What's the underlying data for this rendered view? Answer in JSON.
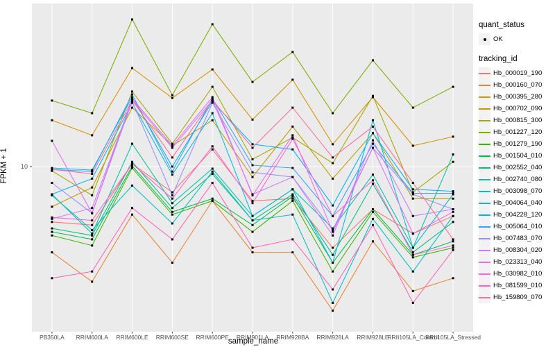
{
  "chart_data": {
    "type": "line",
    "xlabel": "sample_name",
    "ylabel": "FPKM + 1",
    "y_scale": "log10",
    "y_tick_labels": [
      "10"
    ],
    "grid": true,
    "panel_color": "#EBEBEB",
    "grid_color": "#FFFFFF",
    "categories": [
      "PB350LA",
      "RRIM600LA",
      "RRIM600LE",
      "RRIM600SE",
      "RRIM600PE",
      "RRIM901LA",
      "RRIM928BA",
      "RRIM928LA",
      "RRIM928LE",
      "RRII105LA_Control",
      "RRII105LA_Stressed"
    ],
    "legend": {
      "quant_status_title": "quant_status",
      "quant_status_items": [
        "OK"
      ],
      "tracking_id_title": "tracking_id",
      "position": "right"
    },
    "series": [
      {
        "name": "Hb_000019_190",
        "color": "#F8766D",
        "values": [
          4.5,
          4.3,
          10.4,
          6.9,
          12.8,
          6.1,
          6.3,
          3.1,
          5.4,
          3.8,
          4.9
        ]
      },
      {
        "name": "Hb_000160_070",
        "color": "#EA8331",
        "values": [
          2.9,
          1.9,
          5.0,
          2.5,
          6.1,
          2.9,
          2.9,
          1.25,
          3.4,
          1.66,
          2.0
        ]
      },
      {
        "name": "Hb_000395_280",
        "color": "#D89000",
        "values": [
          19.5,
          15.7,
          41.4,
          26.9,
          40.6,
          19.7,
          35.0,
          13.8,
          27.2,
          13.5,
          15.4
        ]
      },
      {
        "name": "Hb_000702_090",
        "color": "#C09B00",
        "values": [
          5.6,
          7.4,
          23.4,
          13.5,
          19.5,
          8.6,
          17.8,
          8.4,
          16.2,
          6.3,
          6.3
        ]
      },
      {
        "name": "Hb_000815_300",
        "color": "#A3A500",
        "values": [
          9.4,
          6.6,
          29.5,
          13.9,
          31.6,
          11.1,
          15.2,
          10.5,
          27.7,
          6.9,
          10.7
        ]
      },
      {
        "name": "Hb_001227_120",
        "color": "#7CAE00",
        "values": [
          25.9,
          21.6,
          83.5,
          28.0,
          77.9,
          33.9,
          52.2,
          21.6,
          46.3,
          23.4,
          31.6
        ]
      },
      {
        "name": "Hb_001279_190",
        "color": "#39B600",
        "values": [
          3.7,
          3.2,
          9.8,
          5.0,
          6.1,
          3.9,
          6.1,
          2.2,
          5.2,
          2.7,
          3.1
        ]
      },
      {
        "name": "Hb_001504_010",
        "color": "#00BB4E",
        "values": [
          3.9,
          3.5,
          10.1,
          5.2,
          6.3,
          4.3,
          6.5,
          2.5,
          5.4,
          2.8,
          3.4
        ]
      },
      {
        "name": "Hb_002552_040",
        "color": "#00BF7D",
        "values": [
          4.1,
          3.7,
          10.7,
          5.5,
          9.0,
          4.6,
          6.7,
          2.8,
          7.8,
          2.9,
          4.5
        ]
      },
      {
        "name": "Hb_002740_080",
        "color": "#00C1A3",
        "values": [
          6.7,
          3.8,
          13.9,
          5.9,
          9.7,
          4.9,
          7.2,
          4.1,
          8.9,
          3.1,
          11.9
        ]
      },
      {
        "name": "Hb_003098_070",
        "color": "#00BFC4",
        "values": [
          6.6,
          4.0,
          7.6,
          4.4,
          9.3,
          4.6,
          5.0,
          1.4,
          4.7,
          2.2,
          4.9
        ]
      },
      {
        "name": "Hb_004064_040",
        "color": "#00BAE0",
        "values": [
          6.7,
          8.4,
          25.1,
          8.9,
          21.6,
          4.9,
          7.2,
          2.5,
          19.5,
          3.1,
          6.7
        ]
      },
      {
        "name": "Hb_004228_120",
        "color": "#00B0F6",
        "values": [
          9.8,
          9.5,
          27.2,
          10.0,
          25.6,
          13.8,
          12.8,
          5.7,
          16.2,
          7.2,
          7.0
        ]
      },
      {
        "name": "Hb_005064_010",
        "color": "#35A2FF",
        "values": [
          9.6,
          9.3,
          28.3,
          9.3,
          26.7,
          10.2,
          9.8,
          4.9,
          13.9,
          6.8,
          6.8
        ]
      },
      {
        "name": "Hb_007483_070",
        "color": "#9590FF",
        "values": [
          7.9,
          5.1,
          25.6,
          6.6,
          25.1,
          9.2,
          8.6,
          4.0,
          13.1,
          6.7,
          5.4
        ]
      },
      {
        "name": "Hb_008304_020",
        "color": "#C77CFF",
        "values": [
          4.7,
          5.5,
          26.1,
          13.1,
          26.1,
          6.7,
          8.6,
          3.7,
          14.6,
          4.9,
          5.4
        ]
      },
      {
        "name": "Hb_023313_040",
        "color": "#E76BF3",
        "values": [
          14.5,
          5.1,
          26.7,
          13.5,
          27.2,
          6.6,
          15.7,
          3.9,
          13.1,
          3.8,
          5.2
        ]
      },
      {
        "name": "Hb_030982_010",
        "color": "#FA62DB",
        "values": [
          4.8,
          4.6,
          10.4,
          6.3,
          13.4,
          5.9,
          14.9,
          4.9,
          8.2,
          2.8,
          3.2
        ]
      },
      {
        "name": "Hb_081599_010",
        "color": "#FF62BC",
        "values": [
          2.0,
          2.2,
          5.5,
          3.5,
          7.9,
          3.1,
          3.5,
          1.7,
          4.3,
          1.4,
          3.0
        ]
      },
      {
        "name": "Hb_159809_070",
        "color": "#FF6A98",
        "values": [
          9.6,
          9.0,
          26.1,
          11.4,
          26.1,
          13.1,
          23.4,
          11.4,
          17.8,
          7.9,
          3.5
        ]
      }
    ]
  }
}
